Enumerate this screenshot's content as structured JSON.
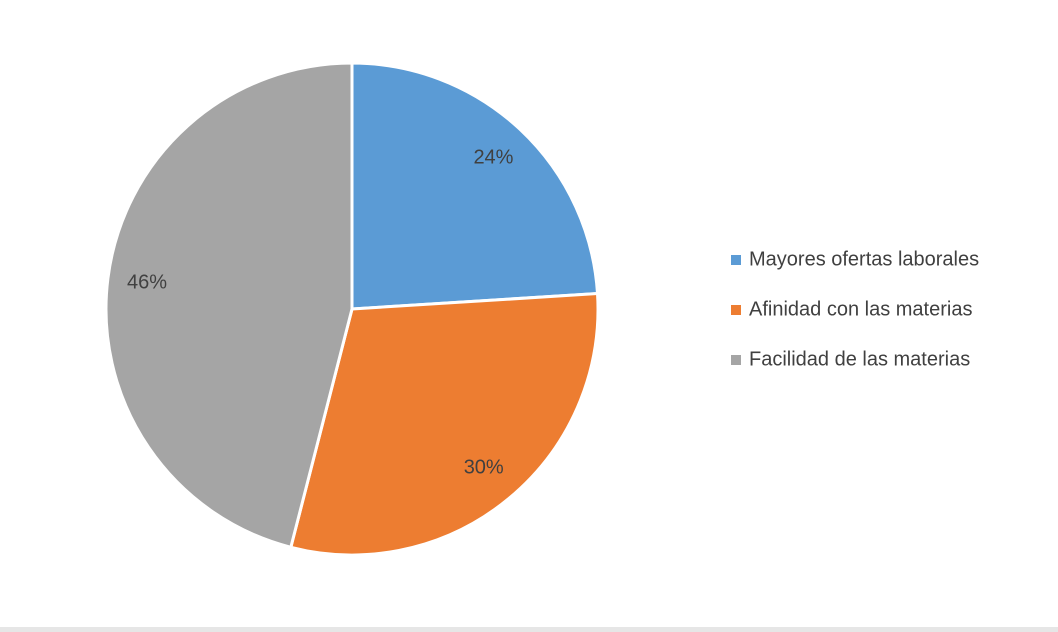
{
  "chart_data": {
    "type": "pie",
    "categories": [
      "Mayores ofertas laborales",
      "Afinidad con las materias",
      "Facilidad de las materias"
    ],
    "values": [
      24,
      30,
      46
    ],
    "value_labels": [
      "24%",
      "30%",
      "46%"
    ],
    "colors": [
      "#5b9bd5",
      "#ed7d31",
      "#a5a5a5"
    ],
    "legend": "right"
  }
}
